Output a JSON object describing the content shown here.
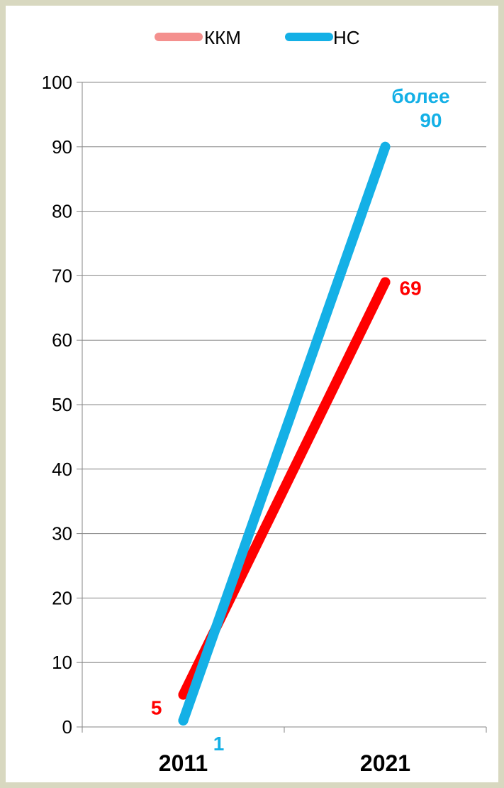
{
  "chart_data": {
    "type": "line",
    "categories": [
      "2011",
      "2021"
    ],
    "series": [
      {
        "name": "ККМ",
        "values": [
          5,
          69
        ],
        "color": "#ff0000",
        "legend_color": "#f4908e",
        "labels": [
          "5",
          "69"
        ]
      },
      {
        "name": "НС",
        "values": [
          1,
          90
        ],
        "color": "#14b0e6",
        "legend_color": "#14b0e6",
        "labels": [
          "1",
          "более 90"
        ]
      }
    ],
    "ylim": [
      0,
      100
    ],
    "yticks": [
      0,
      10,
      20,
      30,
      40,
      50,
      60,
      70,
      80,
      90,
      100
    ],
    "grid": true,
    "legend": "top"
  }
}
